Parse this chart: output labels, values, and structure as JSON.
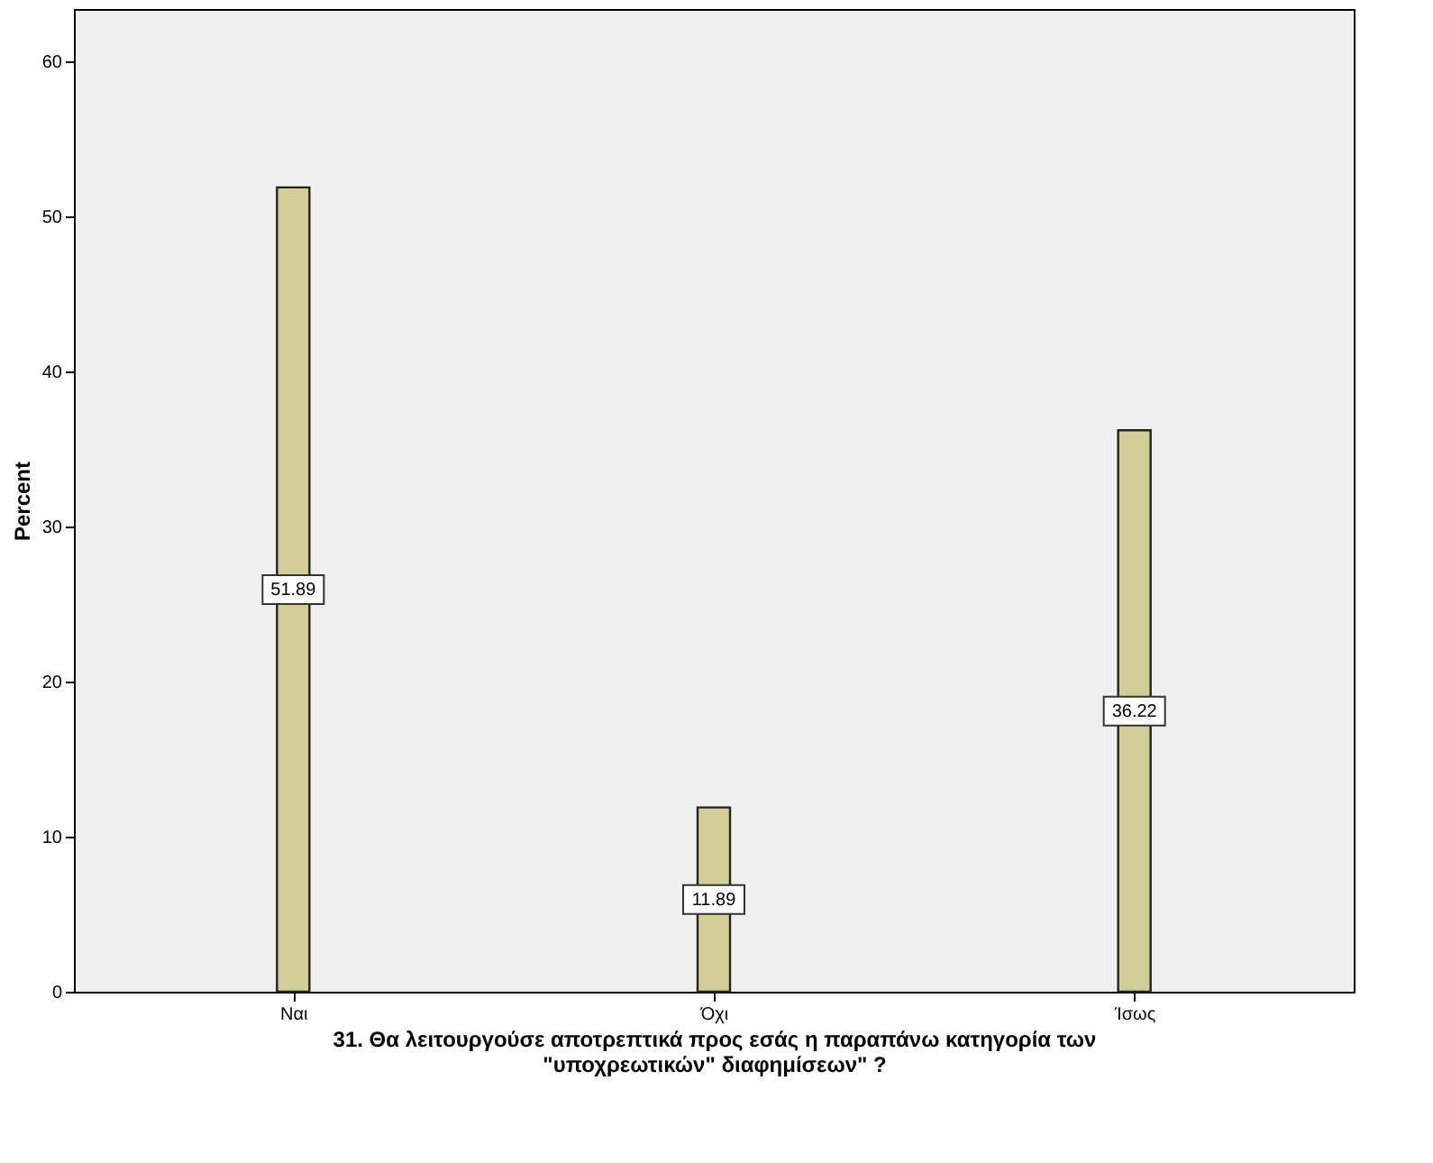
{
  "chart_data": {
    "type": "bar",
    "categories": [
      "Ναι",
      "Όχι",
      "Ίσως"
    ],
    "values": [
      51.89,
      11.89,
      36.22
    ],
    "color": "#d3ce97",
    "ylabel": "Percent",
    "xlabel": "31. Θα λειτουργούσε αποτρεπτικά προς εσάς η παραπάνω κατηγορία των \"υποχρεωτικών\" διαφημίσεων\" ?",
    "ylim": [
      0,
      63.4
    ],
    "yticks": [
      0,
      10,
      20,
      30,
      40,
      50,
      60
    ],
    "data_labels": true,
    "grid": false
  }
}
